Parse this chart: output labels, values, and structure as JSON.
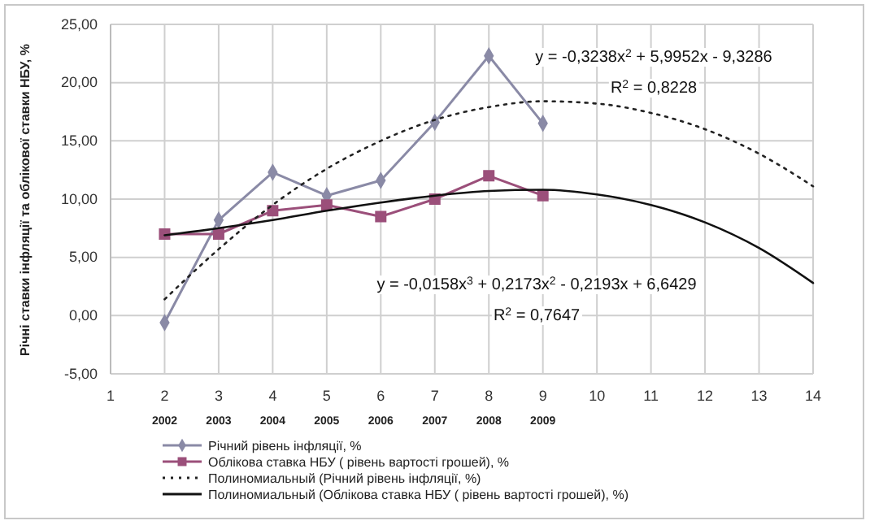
{
  "chart_data": {
    "type": "line",
    "ylabel": "Річні ставки інфляції та облікової ставки НБУ, %",
    "xlim": [
      1,
      14
    ],
    "xticks": [
      1,
      2,
      3,
      4,
      5,
      6,
      7,
      8,
      9,
      10,
      11,
      12,
      13,
      14
    ],
    "ylim": [
      -5,
      25
    ],
    "yticks": [
      {
        "value": -5,
        "label": "-5,00"
      },
      {
        "value": 0,
        "label": "0,00"
      },
      {
        "value": 5,
        "label": "5,00"
      },
      {
        "value": 10,
        "label": "10,00"
      },
      {
        "value": 15,
        "label": "15,00"
      },
      {
        "value": 20,
        "label": "20,00"
      },
      {
        "value": 25,
        "label": "25,00"
      }
    ],
    "grid": true,
    "legend": "bottom",
    "x": [
      2,
      3,
      4,
      5,
      6,
      7,
      8,
      9
    ],
    "series": [
      {
        "name": "Річний рівень інфляції, %",
        "color": "#8a8aa6",
        "marker": "diamond",
        "line_style": "solid",
        "values": [
          -0.6,
          8.2,
          12.3,
          10.3,
          11.6,
          16.6,
          22.3,
          16.5
        ]
      },
      {
        "name": "Облікова ставка НБУ ( рівень вартості грошей), %",
        "color": "#9b4f7a",
        "marker": "square",
        "line_style": "solid",
        "values": [
          7.0,
          7.0,
          9.0,
          9.5,
          8.5,
          10.0,
          12.0,
          10.3
        ]
      },
      {
        "name": "Полиномиальный (Річний рівень інфляції, %)",
        "color": "#222222",
        "marker": "none",
        "line_style": "dotted",
        "x": [
          2,
          3,
          4,
          5,
          6,
          7,
          8,
          9,
          10,
          11,
          12,
          13,
          14
        ],
        "values": [
          1.4,
          5.7,
          9.5,
          12.6,
          15.0,
          16.8,
          17.9,
          18.4,
          18.2,
          17.4,
          16.0,
          13.9,
          11.1
        ]
      },
      {
        "name": "Полиномиальный (Облікова ставка НБУ ( рівень вартості грошей), %)",
        "color": "#111111",
        "marker": "none",
        "line_style": "solid",
        "x": [
          2,
          3,
          4,
          5,
          6,
          7,
          8,
          9,
          10,
          11,
          12,
          13,
          14
        ],
        "values": [
          6.9,
          7.5,
          8.2,
          9.0,
          9.7,
          10.3,
          10.7,
          10.8,
          10.4,
          9.5,
          8.0,
          5.8,
          2.8
        ]
      }
    ],
    "annotations": [
      "y = -0,3238x$^{2}$ + 5,9952x - 9,3286",
      "R$^{2}$ = 0,8228",
      "y = -0,0158x$^{3}$ + 0,2173x$^{2}$ - 0,2193x + 6,6429",
      "R$^{2}$ = 0,7647",
      "2002",
      "2003",
      "2004",
      "2005",
      "2006",
      "2007",
      "2008",
      "2009"
    ]
  }
}
